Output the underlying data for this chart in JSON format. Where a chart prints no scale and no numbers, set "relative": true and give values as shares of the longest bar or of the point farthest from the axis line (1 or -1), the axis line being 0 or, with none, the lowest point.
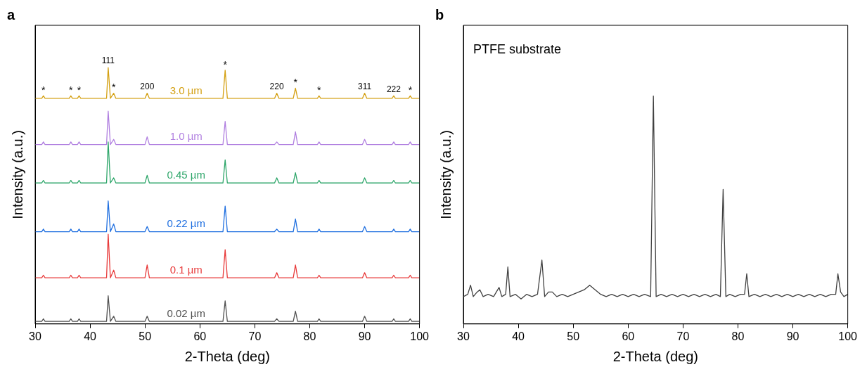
{
  "chart_data": [
    {
      "type": "line",
      "title": "a",
      "xlabel": "2-Theta (deg)",
      "ylabel": "Intensity (a.u.)",
      "relative": true,
      "marker": "none",
      "xlim": [
        30,
        100
      ],
      "xticks": [
        30,
        40,
        50,
        60,
        70,
        80,
        90,
        100
      ],
      "x": [
        30,
        31.2,
        31.5,
        31.8,
        36.2,
        36.5,
        36.8,
        37.7,
        38,
        38.3,
        43.0,
        43.3,
        43.7,
        44.3,
        44.7,
        50.0,
        50.4,
        50.8,
        64.2,
        64.6,
        65.0,
        73.6,
        74,
        74.4,
        77.0,
        77.4,
        77.8,
        81.4,
        81.7,
        82.0,
        89.6,
        90,
        90.4,
        95.0,
        95.3,
        95.6,
        98.0,
        98.3,
        98.6,
        100
      ],
      "series": [
        {
          "name": "3.0 µm",
          "color": "#d4a012",
          "values": [
            0.88,
            0.88,
            0.89,
            0.88,
            0.88,
            0.89,
            0.88,
            0.88,
            0.89,
            0.88,
            0.88,
            1,
            0.88,
            0.9,
            0.88,
            0.88,
            0.9,
            0.88,
            0.88,
            0.99,
            0.88,
            0.88,
            0.9,
            0.88,
            0.88,
            0.92,
            0.88,
            0.88,
            0.89,
            0.88,
            0.88,
            0.9,
            0.88,
            0.88,
            0.89,
            0.88,
            0.88,
            0.89,
            0.88,
            0.88
          ]
        },
        {
          "name": "1.0 µm",
          "color": "#b07fe0",
          "values": [
            0.7,
            0.7,
            0.71,
            0.7,
            0.7,
            0.71,
            0.7,
            0.7,
            0.71,
            0.7,
            0.7,
            0.83,
            0.7,
            0.72,
            0.7,
            0.7,
            0.73,
            0.7,
            0.7,
            0.79,
            0.7,
            0.7,
            0.71,
            0.7,
            0.7,
            0.75,
            0.7,
            0.7,
            0.71,
            0.7,
            0.7,
            0.72,
            0.7,
            0.7,
            0.71,
            0.7,
            0.7,
            0.71,
            0.7,
            0.7
          ]
        },
        {
          "name": "0.45 µm",
          "color": "#2ea66a",
          "values": [
            0.55,
            0.55,
            0.56,
            0.55,
            0.55,
            0.56,
            0.55,
            0.55,
            0.56,
            0.55,
            0.55,
            0.71,
            0.55,
            0.57,
            0.55,
            0.55,
            0.58,
            0.55,
            0.55,
            0.64,
            0.55,
            0.55,
            0.57,
            0.55,
            0.55,
            0.59,
            0.55,
            0.55,
            0.56,
            0.55,
            0.55,
            0.57,
            0.55,
            0.55,
            0.56,
            0.55,
            0.55,
            0.56,
            0.55,
            0.55
          ]
        },
        {
          "name": "0.22 µm",
          "color": "#1f6fe0",
          "values": [
            0.36,
            0.36,
            0.37,
            0.36,
            0.36,
            0.37,
            0.36,
            0.36,
            0.37,
            0.36,
            0.36,
            0.48,
            0.36,
            0.39,
            0.36,
            0.36,
            0.38,
            0.36,
            0.36,
            0.46,
            0.36,
            0.36,
            0.37,
            0.36,
            0.36,
            0.41,
            0.36,
            0.36,
            0.37,
            0.36,
            0.36,
            0.38,
            0.36,
            0.36,
            0.37,
            0.36,
            0.36,
            0.37,
            0.36,
            0.36
          ]
        },
        {
          "name": "0.1 µm",
          "color": "#e83a3a",
          "values": [
            0.18,
            0.18,
            0.19,
            0.18,
            0.18,
            0.19,
            0.18,
            0.18,
            0.19,
            0.18,
            0.18,
            0.35,
            0.18,
            0.21,
            0.18,
            0.18,
            0.23,
            0.18,
            0.18,
            0.29,
            0.18,
            0.18,
            0.2,
            0.18,
            0.18,
            0.23,
            0.18,
            0.18,
            0.19,
            0.18,
            0.18,
            0.2,
            0.18,
            0.18,
            0.19,
            0.18,
            0.18,
            0.19,
            0.18,
            0.18
          ]
        },
        {
          "name": "0.02 µm",
          "color": "#505050",
          "values": [
            0.01,
            0.01,
            0.02,
            0.01,
            0.01,
            0.02,
            0.01,
            0.01,
            0.02,
            0.01,
            0.01,
            0.11,
            0.01,
            0.03,
            0.01,
            0.01,
            0.03,
            0.01,
            0.01,
            0.09,
            0.01,
            0.01,
            0.02,
            0.01,
            0.01,
            0.05,
            0.01,
            0.01,
            0.02,
            0.01,
            0.01,
            0.03,
            0.01,
            0.01,
            0.02,
            0.01,
            0.01,
            0.02,
            0.01,
            0.01
          ]
        }
      ],
      "annotations": [
        {
          "text": "*",
          "x": 31.5,
          "y": 0.89
        },
        {
          "text": "*",
          "x": 36.5,
          "y": 0.89
        },
        {
          "text": "*",
          "x": 38,
          "y": 0.89
        },
        {
          "text": "111",
          "x": 43.3,
          "y": 1
        },
        {
          "text": "*",
          "x": 44.3,
          "y": 0.9
        },
        {
          "text": "200",
          "x": 50.4,
          "y": 0.9
        },
        {
          "text": "*",
          "x": 64.6,
          "y": 0.99
        },
        {
          "text": "220",
          "x": 74,
          "y": 0.9
        },
        {
          "text": "*",
          "x": 77.4,
          "y": 0.92
        },
        {
          "text": "*",
          "x": 81.7,
          "y": 0.89
        },
        {
          "text": "311",
          "x": 90,
          "y": 0.9
        },
        {
          "text": "222",
          "x": 95.3,
          "y": 0.89
        },
        {
          "text": "*",
          "x": 98.3,
          "y": 0.89
        }
      ]
    },
    {
      "type": "line",
      "title": "b",
      "xlabel": "2-Theta (deg)",
      "ylabel": "Intensity (a.u.)",
      "relative": true,
      "marker": "none",
      "xlim": [
        30,
        100
      ],
      "xticks": [
        30,
        40,
        50,
        60,
        70,
        80,
        90,
        100
      ],
      "x": [
        30,
        30.8,
        31.3,
        31.8,
        32.5,
        33,
        33.6,
        34.5,
        35.5,
        36.5,
        37,
        37.7,
        38.1,
        38.5,
        39.5,
        40.5,
        41.5,
        42.5,
        43.5,
        44.3,
        44.8,
        45.5,
        46.2,
        47,
        48,
        49,
        50,
        51,
        52,
        53,
        54,
        55,
        56,
        57,
        58,
        59,
        60,
        61,
        62,
        63,
        64.1,
        64.6,
        65.1,
        66,
        67,
        68,
        69,
        70,
        71,
        72,
        73,
        74,
        75,
        76,
        76.8,
        77.3,
        77.8,
        78.5,
        79.5,
        80.5,
        81.2,
        81.6,
        82,
        83,
        84,
        85,
        86,
        87,
        88,
        89,
        90,
        91,
        92,
        93,
        94,
        95,
        96,
        97,
        97.8,
        98.2,
        98.7,
        99.3,
        100
      ],
      "series": [
        {
          "color": "#404040",
          "values": [
            0.12,
            0.13,
            0.17,
            0.12,
            0.14,
            0.15,
            0.12,
            0.13,
            0.12,
            0.16,
            0.12,
            0.13,
            0.25,
            0.12,
            0.13,
            0.11,
            0.13,
            0.12,
            0.13,
            0.28,
            0.12,
            0.14,
            0.14,
            0.12,
            0.13,
            0.12,
            0.13,
            0.14,
            0.15,
            0.17,
            0.15,
            0.13,
            0.12,
            0.13,
            0.12,
            0.13,
            0.12,
            0.13,
            0.12,
            0.13,
            0.12,
            1,
            0.12,
            0.13,
            0.12,
            0.13,
            0.12,
            0.13,
            0.12,
            0.13,
            0.12,
            0.13,
            0.12,
            0.13,
            0.12,
            0.59,
            0.12,
            0.13,
            0.12,
            0.13,
            0.13,
            0.22,
            0.12,
            0.13,
            0.12,
            0.13,
            0.12,
            0.13,
            0.12,
            0.13,
            0.12,
            0.13,
            0.12,
            0.13,
            0.12,
            0.13,
            0.12,
            0.13,
            0.13,
            0.22,
            0.14,
            0.12,
            0.13
          ]
        }
      ],
      "annotations": [
        "PTFE substrate"
      ]
    }
  ]
}
